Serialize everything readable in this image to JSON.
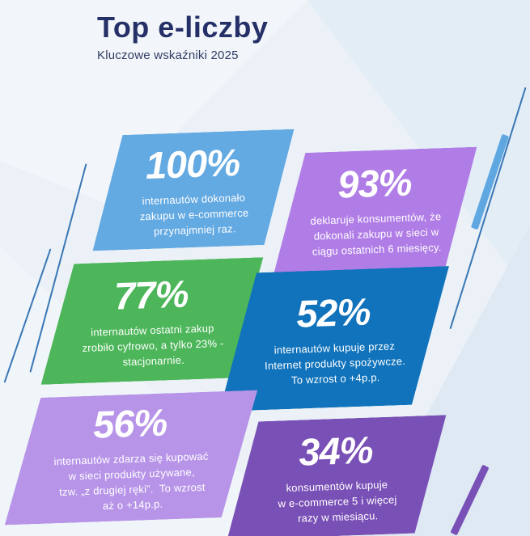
{
  "header": {
    "title": "Top e-liczby",
    "subtitle": "Kluczowe wskaźniki 2025"
  },
  "cards": [
    {
      "value": "100%",
      "description": "internautów dokonało\nzakupu w e-commerce\nprzynajmniej raz.",
      "color": "#63A9E2"
    },
    {
      "value": "93%",
      "description": "deklaruje konsumentów, że\ndokonali zakupu w sieci w\nciągu ostatnich 6 miesięcy.",
      "color": "#B07DE6"
    },
    {
      "value": "77%",
      "description": "internautów ostatni zakup\nzrobiło cyfrowo, a tylko 23% -\nstacjonarnie.",
      "color": "#4DB65A"
    },
    {
      "value": "52%",
      "description": "internautów kupuje przez\nInternet produkty spożywcze.\nTo wzrost o +4p.p.",
      "color": "#1173BB"
    },
    {
      "value": "56%",
      "description": "internautów zdarza się kupować\nw sieci produkty używane,\ntzw. „z drugiej ręki”.  To wzrost\naż o +14p.p.",
      "color": "#B794E8"
    },
    {
      "value": "34%",
      "description": "konsumentów kupuje\nw e-commerce 5 i więcej\nrazy w miesiącu.",
      "color": "#7950B6"
    }
  ],
  "palette": {
    "background": "#EBF1F7",
    "wedge_top_left": "#F2F6FA",
    "wedge_top_right": "#E2EDF6",
    "wedge_bottom_right": "#DEE9F3",
    "wedge_mid_left": "#F3F7FB",
    "title_color": "#243067",
    "subtitle_color": "#303C63",
    "card_text_color": "#FFFFFF",
    "thin_line_color": "#3A77B5",
    "stripe_blue_color": "#5FA7E1",
    "stripe_purple_color": "#7950B6"
  },
  "chart_data": {
    "type": "table",
    "title": "Top e-liczby",
    "subtitle": "Kluczowe wskaźniki 2025",
    "unit": "%",
    "categories": [
      "internautów dokonało zakupu w e-commerce przynajmniej raz.",
      "deklaruje konsumentów, że dokonali zakupu w sieci w ciągu ostatnich 6 miesięcy.",
      "internautów ostatni zakup zrobiło cyfrowo, a tylko 23% - stacjonarnie.",
      "internautów kupuje przez Internet produkty spożywcze. To wzrost o +4p.p.",
      "internautów zdarza się kupować w sieci produkty używane, tzw. „z drugiej ręki”. To wzrost aż o +14p.p.",
      "konsumentów kupuje w e-commerce 5 i więcej razy w miesiącu."
    ],
    "values": [
      100,
      93,
      77,
      52,
      56,
      34
    ]
  }
}
